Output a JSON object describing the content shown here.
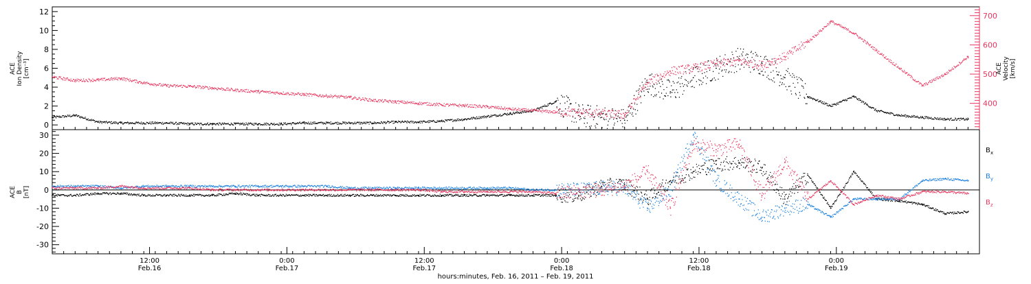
{
  "colors": {
    "black": "#000000",
    "red": "#e8345d",
    "blue": "#1a80e0",
    "axis": "#000000"
  },
  "chart_data": [
    {
      "type": "scatter",
      "panel": "top",
      "ylabel_left": [
        "ACE",
        "Ion Density",
        "[cm⁻³]"
      ],
      "ylabel_right": [
        "ACE",
        "Velocity",
        "[km/s]"
      ],
      "ylim_left": [
        -0.5,
        12.5
      ],
      "yticks_left": [
        0,
        2,
        4,
        6,
        8,
        10,
        12
      ],
      "ylim_right": [
        310,
        730
      ],
      "yticks_right": [
        400,
        500,
        600,
        700
      ],
      "series": [
        {
          "axis": "left",
          "color": "#000000",
          "x_hours": [
            0,
            2,
            4,
            6,
            8,
            10,
            12,
            14,
            16,
            18,
            20,
            22,
            24,
            26,
            28,
            30,
            32,
            34,
            36,
            38,
            40,
            42,
            44,
            46,
            48,
            50,
            52,
            54,
            56,
            58,
            60,
            62,
            64,
            66,
            68,
            70,
            72,
            74,
            76,
            78,
            80
          ],
          "values": [
            0.8,
            1.0,
            0.3,
            0.2,
            0.2,
            0.2,
            0.1,
            0.1,
            0.1,
            0.1,
            0.1,
            0.2,
            0.2,
            0.2,
            0.2,
            0.3,
            0.3,
            0.4,
            0.6,
            0.9,
            1.2,
            1.5,
            2.5,
            1.0,
            0.8,
            0.5,
            4.5,
            3.5,
            5.0,
            6.0,
            7.0,
            6.5,
            5.0,
            3.0,
            2.0,
            3.0,
            1.5,
            1.0,
            0.8,
            0.6,
            0.6
          ]
        },
        {
          "axis": "right",
          "color": "#e8345d",
          "x_hours": [
            0,
            2,
            4,
            6,
            8,
            10,
            12,
            14,
            16,
            18,
            20,
            22,
            24,
            26,
            28,
            30,
            32,
            34,
            36,
            38,
            40,
            42,
            44,
            46,
            48,
            50,
            52,
            54,
            56,
            58,
            60,
            62,
            64,
            66,
            68,
            70,
            72,
            74,
            76,
            78,
            80
          ],
          "values": [
            490,
            478,
            480,
            485,
            470,
            460,
            458,
            452,
            445,
            440,
            435,
            430,
            425,
            420,
            410,
            405,
            400,
            395,
            392,
            388,
            380,
            375,
            370,
            368,
            365,
            360,
            470,
            510,
            520,
            535,
            545,
            530,
            560,
            610,
            680,
            640,
            580,
            520,
            460,
            500,
            560
          ]
        }
      ]
    },
    {
      "type": "scatter",
      "panel": "bottom",
      "ylabel_left": [
        "ACE",
        "B",
        "[nT]"
      ],
      "ylim_left": [
        -35,
        33
      ],
      "yticks_left": [
        -30,
        -20,
        -10,
        0,
        10,
        20,
        30
      ],
      "legend": [
        "Bx",
        "By",
        "Bz"
      ],
      "legend_placement": "right",
      "series": [
        {
          "name": "Bx",
          "color": "#000000",
          "x_hours": [
            0,
            2,
            4,
            6,
            8,
            10,
            12,
            14,
            16,
            18,
            20,
            22,
            24,
            26,
            28,
            30,
            32,
            34,
            36,
            38,
            40,
            42,
            44,
            46,
            48,
            50,
            52,
            54,
            56,
            58,
            60,
            62,
            64,
            66,
            68,
            70,
            72,
            74,
            76,
            78,
            80
          ],
          "values": [
            -3,
            -3,
            -2,
            -2,
            -3,
            -3,
            -3,
            -3,
            -2,
            -3,
            -3,
            -3,
            -3,
            -3,
            -3,
            -3,
            -3,
            -3,
            -3,
            -3,
            -3,
            -3,
            -3,
            -3,
            2,
            3,
            -5,
            5,
            10,
            14,
            15,
            12,
            -5,
            8,
            -10,
            10,
            -5,
            -6,
            -8,
            -13,
            -12
          ]
        },
        {
          "name": "By",
          "color": "#1a80e0",
          "x_hours": [
            0,
            2,
            4,
            6,
            8,
            10,
            12,
            14,
            16,
            18,
            20,
            22,
            24,
            26,
            28,
            30,
            32,
            34,
            36,
            38,
            40,
            42,
            44,
            46,
            48,
            50,
            52,
            54,
            56,
            58,
            60,
            62,
            64,
            66,
            68,
            70,
            72,
            74,
            76,
            78,
            80
          ],
          "values": [
            2,
            2,
            2,
            1,
            2,
            2,
            2,
            2,
            2,
            2,
            2,
            2,
            2,
            1,
            1,
            1,
            1,
            1,
            1,
            1,
            1,
            0,
            0,
            0,
            1,
            1,
            -10,
            0,
            30,
            5,
            -5,
            -15,
            -10,
            -8,
            -15,
            -5,
            -5,
            -5,
            5,
            6,
            5
          ]
        },
        {
          "name": "Bz",
          "color": "#e8345d",
          "x_hours": [
            0,
            2,
            4,
            6,
            8,
            10,
            12,
            14,
            16,
            18,
            20,
            22,
            24,
            26,
            28,
            30,
            32,
            34,
            36,
            38,
            40,
            42,
            44,
            46,
            48,
            50,
            52,
            54,
            56,
            58,
            60,
            62,
            64,
            66,
            68,
            70,
            72,
            74,
            76,
            78,
            80
          ],
          "values": [
            1,
            1,
            1,
            2,
            1,
            1,
            1,
            0,
            0,
            0,
            0,
            0,
            0,
            0,
            0,
            0,
            0,
            -1,
            -1,
            -1,
            -1,
            -1,
            -2,
            -1,
            0,
            2,
            10,
            -10,
            25,
            22,
            25,
            -3,
            15,
            -5,
            5,
            -8,
            -3,
            -5,
            -1,
            -1,
            -2
          ]
        }
      ]
    }
  ],
  "xaxis": {
    "xlim_hours": [
      0,
      81
    ],
    "tick_labels": [
      {
        "hour": 8.5,
        "time": "12:00",
        "day": "Feb.16"
      },
      {
        "hour": 20.5,
        "time": "0:00",
        "day": "Feb.17"
      },
      {
        "hour": 32.5,
        "time": "12:00",
        "day": "Feb.17"
      },
      {
        "hour": 44.5,
        "time": "0:00",
        "day": "Feb.18"
      },
      {
        "hour": 56.5,
        "time": "12:00",
        "day": "Feb.18"
      },
      {
        "hour": 68.5,
        "time": "0:00",
        "day": "Feb.19"
      }
    ],
    "title": "hours:minutes, Feb. 16, 2011 – Feb. 19, 2011"
  },
  "legend_labels": {
    "bx": "B",
    "bx_sub": "x",
    "by": "B",
    "by_sub": "y",
    "bz": "B",
    "bz_sub": "z"
  }
}
